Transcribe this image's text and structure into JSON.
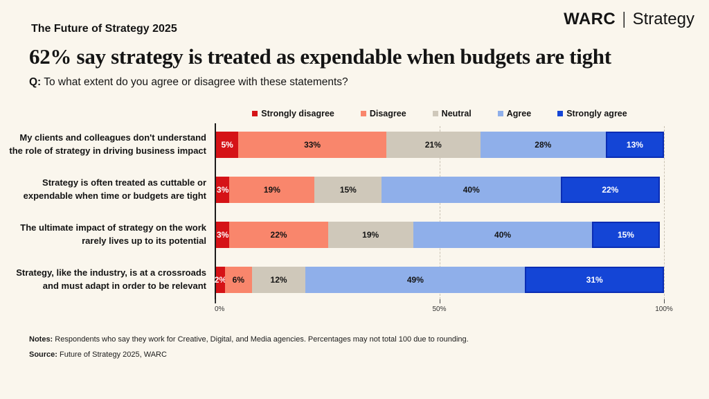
{
  "page": {
    "kicker": "The Future of Strategy 2025",
    "logo": {
      "brand": "WARC",
      "divider": "|",
      "suffix": "Strategy"
    },
    "title": "62% say strategy is treated as expendable when budgets are tight",
    "question_prefix": "Q:",
    "question": "To what extent do you agree or disagree with these statements?",
    "notes_label": "Notes:",
    "notes": "Respondents who say they work for Creative, Digital, and Media agencies. Percentages may not total 100 due to rounding.",
    "source_label": "Source:",
    "source": "Future of Strategy 2025, WARC"
  },
  "colors": {
    "background": "#faf6ed",
    "text": "#141414",
    "axis": "#1b1b1b",
    "gridline": "#c9c2b3"
  },
  "chart_data": {
    "type": "bar",
    "orientation": "horizontal-stacked",
    "legend_position": "top",
    "grid": true,
    "xlim": [
      0,
      100
    ],
    "value_suffix": "%",
    "x_ticks": [
      {
        "label": "0%",
        "value": 0
      },
      {
        "label": "50%",
        "value": 50
      },
      {
        "label": "100%",
        "value": 100
      }
    ],
    "gridlines": [
      50,
      100
    ],
    "categories": [
      [
        "My clients and colleagues don't understand",
        "the role of strategy in driving business impact"
      ],
      [
        "Strategy is often treated as cuttable or",
        "expendable when time or budgets are tight"
      ],
      [
        "The ultimate impact of strategy on the work",
        "rarely lives up to its potential"
      ],
      [
        "Strategy, like the industry, is at a crossroads",
        "and must adapt in order to be relevant"
      ]
    ],
    "series": [
      {
        "name": "Strongly disagree",
        "color": "#d51317",
        "label_color": "#ffffff",
        "values": [
          5,
          3,
          3,
          2
        ]
      },
      {
        "name": "Disagree",
        "color": "#f9866c",
        "label_color": "#141414",
        "values": [
          33,
          19,
          22,
          6
        ]
      },
      {
        "name": "Neutral",
        "color": "#cfc8ba",
        "label_color": "#141414",
        "values": [
          21,
          15,
          19,
          12
        ]
      },
      {
        "name": "Agree",
        "color": "#8fafea",
        "label_color": "#141414",
        "values": [
          28,
          40,
          40,
          49
        ]
      },
      {
        "name": "Strongly agree",
        "color": "#1445d6",
        "label_color": "#ffffff",
        "border": "#0a2db4",
        "values": [
          13,
          22,
          15,
          31
        ]
      }
    ]
  }
}
